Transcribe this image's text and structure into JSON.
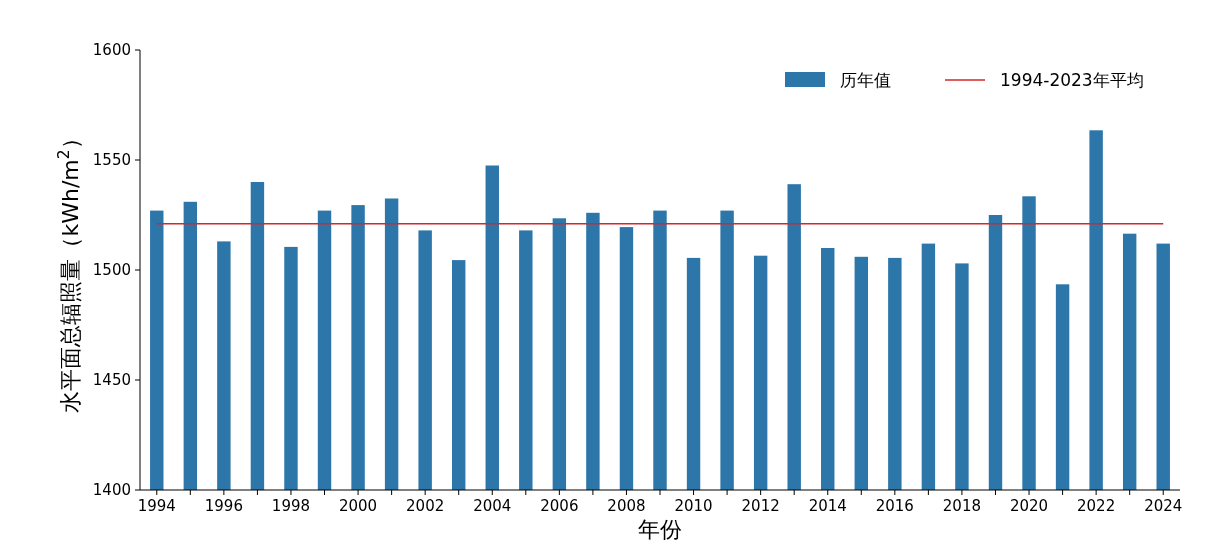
{
  "chart_data": {
    "type": "bar",
    "xlabel": "年份",
    "ylabel": "水平面总辐照量（kWh/m$^{2}$）",
    "categories": [
      "1994",
      null,
      "1996",
      null,
      "1998",
      null,
      "2000",
      null,
      "2002",
      null,
      "2004",
      null,
      "2006",
      null,
      "2008",
      null,
      "2010",
      null,
      "2012",
      null,
      "2014",
      null,
      "2016",
      null,
      "2018",
      null,
      "2020",
      null,
      "2022",
      null,
      "2024"
    ],
    "series": [
      {
        "name": "历年值",
        "color": "#2c76aa",
        "values": [
          1527,
          1531,
          1513,
          1540,
          1510.5,
          1527,
          1529.5,
          1532.5,
          1518,
          1504.5,
          1547.5,
          1518,
          1523.5,
          1526,
          1519.5,
          1527,
          1505.5,
          1527,
          1506.5,
          1539,
          1510,
          1506,
          1505.5,
          1512,
          1503,
          1525,
          1533.5,
          1493.5,
          1563.5,
          1516.5,
          1512
        ]
      }
    ],
    "ref_lines": [
      {
        "axis": "y",
        "value": 1521,
        "label": "1994-2023年平均",
        "color": "#d62728"
      }
    ],
    "ylim": [
      1400,
      1600
    ],
    "yticks": [
      1400,
      1450,
      1500,
      1550,
      1600
    ],
    "legend": "top right"
  }
}
